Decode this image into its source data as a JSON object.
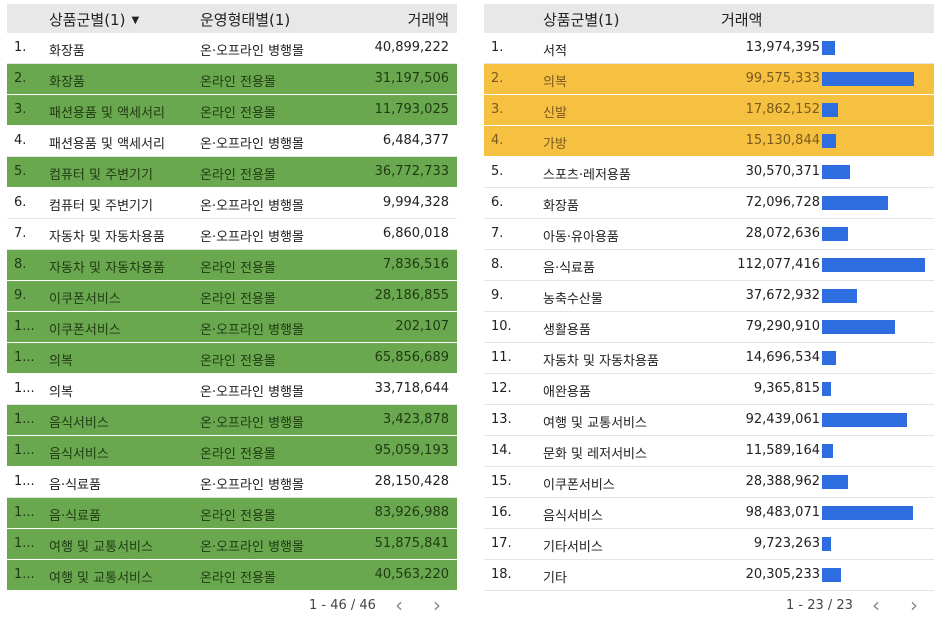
{
  "left": {
    "headers": {
      "category": "상품군별(1)",
      "type": "운영형태별(1)",
      "amount": "거래액"
    },
    "sort_icon": "▼",
    "rows": [
      {
        "idx": "1.",
        "category": "화장품",
        "type": "온·오프라인 병행몰",
        "amount": "40,899,222",
        "highlight": false
      },
      {
        "idx": "2.",
        "category": "화장품",
        "type": "온라인 전용몰",
        "amount": "31,197,506",
        "highlight": true
      },
      {
        "idx": "3.",
        "category": "패션용품 및 액세서리",
        "type": "온라인 전용몰",
        "amount": "11,793,025",
        "highlight": true
      },
      {
        "idx": "4.",
        "category": "패션용품 및 액세서리",
        "type": "온·오프라인 병행몰",
        "amount": "6,484,377",
        "highlight": false
      },
      {
        "idx": "5.",
        "category": "컴퓨터 및 주변기기",
        "type": "온라인 전용몰",
        "amount": "36,772,733",
        "highlight": true
      },
      {
        "idx": "6.",
        "category": "컴퓨터 및 주변기기",
        "type": "온·오프라인 병행몰",
        "amount": "9,994,328",
        "highlight": false
      },
      {
        "idx": "7.",
        "category": "자동차 및 자동차용품",
        "type": "온·오프라인 병행몰",
        "amount": "6,860,018",
        "highlight": false
      },
      {
        "idx": "8.",
        "category": "자동차 및 자동차용품",
        "type": "온라인 전용몰",
        "amount": "7,836,516",
        "highlight": true
      },
      {
        "idx": "9.",
        "category": "이쿠폰서비스",
        "type": "온라인 전용몰",
        "amount": "28,186,855",
        "highlight": true
      },
      {
        "idx": "1...",
        "category": "이쿠폰서비스",
        "type": "온·오프라인 병행몰",
        "amount": "202,107",
        "highlight": true
      },
      {
        "idx": "1...",
        "category": "의복",
        "type": "온라인 전용몰",
        "amount": "65,856,689",
        "highlight": true
      },
      {
        "idx": "1...",
        "category": "의복",
        "type": "온·오프라인 병행몰",
        "amount": "33,718,644",
        "highlight": false
      },
      {
        "idx": "1...",
        "category": "음식서비스",
        "type": "온·오프라인 병행몰",
        "amount": "3,423,878",
        "highlight": true
      },
      {
        "idx": "1...",
        "category": "음식서비스",
        "type": "온라인 전용몰",
        "amount": "95,059,193",
        "highlight": true
      },
      {
        "idx": "1...",
        "category": "음·식료품",
        "type": "온·오프라인 병행몰",
        "amount": "28,150,428",
        "highlight": false
      },
      {
        "idx": "1...",
        "category": "음·식료품",
        "type": "온라인 전용몰",
        "amount": "83,926,988",
        "highlight": true
      },
      {
        "idx": "1...",
        "category": "여행 및 교통서비스",
        "type": "온·오프라인 병행몰",
        "amount": "51,875,841",
        "highlight": true
      },
      {
        "idx": "1...",
        "category": "여행 및 교통서비스",
        "type": "온라인 전용몰",
        "amount": "40,563,220",
        "highlight": true
      }
    ],
    "pagination": "1 - 46 / 46"
  },
  "right": {
    "headers": {
      "category": "상품군별(1)",
      "amount": "거래액"
    },
    "max_value": 112077416,
    "rows": [
      {
        "idx": "1.",
        "category": "서적",
        "amount": "13,974,395",
        "value": 13974395,
        "highlight": false
      },
      {
        "idx": "2.",
        "category": "의복",
        "amount": "99,575,333",
        "value": 99575333,
        "highlight": true
      },
      {
        "idx": "3.",
        "category": "신발",
        "amount": "17,862,152",
        "value": 17862152,
        "highlight": true
      },
      {
        "idx": "4.",
        "category": "가방",
        "amount": "15,130,844",
        "value": 15130844,
        "highlight": true
      },
      {
        "idx": "5.",
        "category": "스포츠·레저용품",
        "amount": "30,570,371",
        "value": 30570371,
        "highlight": false
      },
      {
        "idx": "6.",
        "category": "화장품",
        "amount": "72,096,728",
        "value": 72096728,
        "highlight": false
      },
      {
        "idx": "7.",
        "category": "아동·유아용품",
        "amount": "28,072,636",
        "value": 28072636,
        "highlight": false
      },
      {
        "idx": "8.",
        "category": "음·식료품",
        "amount": "112,077,416",
        "value": 112077416,
        "highlight": false
      },
      {
        "idx": "9.",
        "category": "농축수산물",
        "amount": "37,672,932",
        "value": 37672932,
        "highlight": false
      },
      {
        "idx": "10.",
        "category": "생활용품",
        "amount": "79,290,910",
        "value": 79290910,
        "highlight": false
      },
      {
        "idx": "11.",
        "category": "자동차 및 자동차용품",
        "amount": "14,696,534",
        "value": 14696534,
        "highlight": false
      },
      {
        "idx": "12.",
        "category": "애완용품",
        "amount": "9,365,815",
        "value": 9365815,
        "highlight": false
      },
      {
        "idx": "13.",
        "category": "여행 및 교통서비스",
        "amount": "92,439,061",
        "value": 92439061,
        "highlight": false
      },
      {
        "idx": "14.",
        "category": "문화 및 레저서비스",
        "amount": "11,589,164",
        "value": 11589164,
        "highlight": false
      },
      {
        "idx": "15.",
        "category": "이쿠폰서비스",
        "amount": "28,388,962",
        "value": 28388962,
        "highlight": false
      },
      {
        "idx": "16.",
        "category": "음식서비스",
        "amount": "98,483,071",
        "value": 98483071,
        "highlight": false
      },
      {
        "idx": "17.",
        "category": "기타서비스",
        "amount": "9,723,263",
        "value": 9723263,
        "highlight": false
      },
      {
        "idx": "18.",
        "category": "기타",
        "amount": "20,305,233",
        "value": 20305233,
        "highlight": false
      }
    ],
    "pagination": "1 - 23 / 23"
  },
  "icons": {
    "prev": "chevron-left-icon",
    "next": "chevron-right-icon",
    "sort": "sort-desc-icon"
  },
  "colors": {
    "highlight_green": "#6aa84f",
    "highlight_orange": "#f6c140",
    "bar_blue": "#2d6de0",
    "header_bg": "#e8e8e8"
  }
}
